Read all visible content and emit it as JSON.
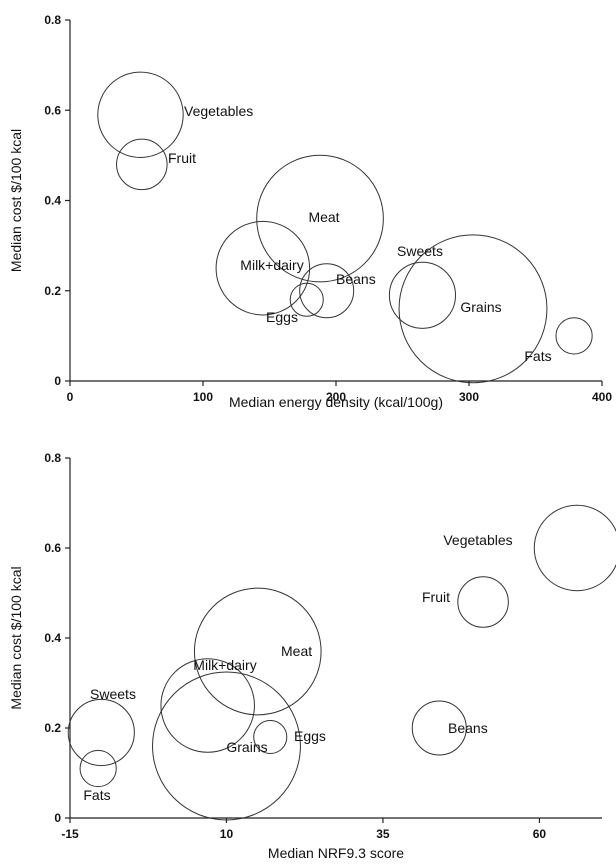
{
  "chart_data": [
    {
      "type": "bubble",
      "title": "",
      "xlabel": "Median energy density (kcal/100g)",
      "ylabel": "Median cost $/100 kcal",
      "xlim": [
        0,
        400
      ],
      "ylim": [
        0,
        0.8
      ],
      "xticks": [
        "0",
        "100",
        "200",
        "300",
        "400"
      ],
      "yticks": [
        "0",
        "0.2",
        "0.4",
        "0.6",
        "0.8"
      ],
      "grid": false,
      "points": [
        {
          "label": "Vegetables",
          "x": 53,
          "y": 0.59,
          "size": 10
        },
        {
          "label": "Fruit",
          "x": 54,
          "y": 0.48,
          "size": 3.5
        },
        {
          "label": "Meat",
          "x": 188,
          "y": 0.36,
          "size": 22
        },
        {
          "label": "Milk+dairy",
          "x": 145,
          "y": 0.25,
          "size": 12
        },
        {
          "label": "Beans",
          "x": 193,
          "y": 0.2,
          "size": 4
        },
        {
          "label": "Eggs",
          "x": 178,
          "y": 0.18,
          "size": 1.5
        },
        {
          "label": "Sweets",
          "x": 265,
          "y": 0.19,
          "size": 6
        },
        {
          "label": "Grains",
          "x": 303,
          "y": 0.16,
          "size": 30
        },
        {
          "label": "Fats",
          "x": 379,
          "y": 0.1,
          "size": 1.8
        }
      ]
    },
    {
      "type": "bubble",
      "title": "",
      "xlabel": "Median NRF9.3 score",
      "ylabel": "Median cost $/100 kcal",
      "xlim": [
        -15,
        70
      ],
      "ylim": [
        0,
        0.8
      ],
      "xticks": [
        "-15",
        "10",
        "35",
        "60"
      ],
      "yticks": [
        "0",
        "0.2",
        "0.4",
        "0.6",
        "0.8"
      ],
      "grid": false,
      "points": [
        {
          "label": "Vegetables",
          "x": 66,
          "y": 0.6,
          "size": 10
        },
        {
          "label": "Fruit",
          "x": 51,
          "y": 0.48,
          "size": 3.5
        },
        {
          "label": "Meat",
          "x": 15,
          "y": 0.37,
          "size": 22
        },
        {
          "label": "Milk+dairy",
          "x": 7,
          "y": 0.25,
          "size": 12
        },
        {
          "label": "Beans",
          "x": 44,
          "y": 0.2,
          "size": 4
        },
        {
          "label": "Eggs",
          "x": 17,
          "y": 0.18,
          "size": 1.5
        },
        {
          "label": "Sweets",
          "x": -10,
          "y": 0.19,
          "size": 6
        },
        {
          "label": "Grains",
          "x": 10,
          "y": 0.16,
          "size": 30
        },
        {
          "label": "Fats",
          "x": -10.5,
          "y": 0.11,
          "size": 1.8
        }
      ]
    }
  ]
}
